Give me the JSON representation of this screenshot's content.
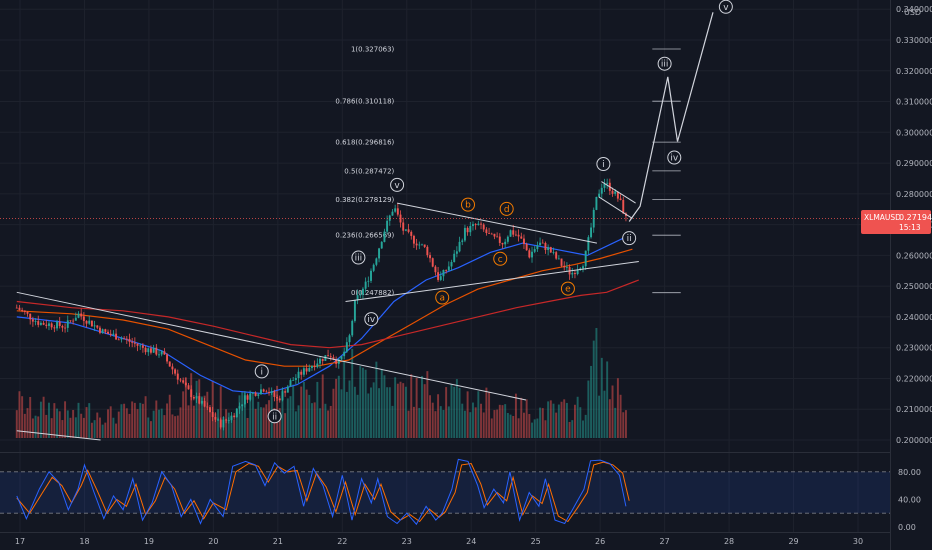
{
  "header": {
    "currency": "USD"
  },
  "price_tag": {
    "symbol": "XLMAUSD",
    "price": "0.271942",
    "countdown": "15:13"
  },
  "colors": {
    "bg": "#131722",
    "grid": "#1e222d",
    "up": "#26a69a",
    "down": "#ef5350",
    "ma_blue": "#2962ff",
    "ma_orange": "#e65100",
    "ma_red": "#c62828",
    "stoch_k": "#2962ff",
    "stoch_d": "#ff6d00",
    "trend": "#d1d4dc",
    "price_line": "#ef5350"
  },
  "chart_data": {
    "type": "candlestick",
    "x_ticks": [
      "17",
      "18",
      "19",
      "20",
      "21",
      "22",
      "23",
      "24",
      "25",
      "26",
      "27",
      "28",
      "29",
      "30"
    ],
    "y_ticks": [
      "0.200000",
      "0.210000",
      "0.220000",
      "0.230000",
      "0.240000",
      "0.250000",
      "0.260000",
      "0.270000",
      "0.280000",
      "0.290000",
      "0.300000",
      "0.310000",
      "0.320000",
      "0.330000",
      "0.340000"
    ],
    "ylim": [
      0.2,
      0.343
    ],
    "last_price": 0.271942,
    "candle_path": [
      [
        16.95,
        0.243
      ],
      [
        17.3,
        0.238
      ],
      [
        17.7,
        0.237
      ],
      [
        17.9,
        0.241
      ],
      [
        18.3,
        0.235
      ],
      [
        18.6,
        0.233
      ],
      [
        18.9,
        0.23
      ],
      [
        19.2,
        0.228
      ],
      [
        19.4,
        0.222
      ],
      [
        19.6,
        0.216
      ],
      [
        19.9,
        0.21
      ],
      [
        20.1,
        0.205
      ],
      [
        20.3,
        0.208
      ],
      [
        20.5,
        0.214
      ],
      [
        20.8,
        0.217
      ],
      [
        21.0,
        0.213
      ],
      [
        21.2,
        0.219
      ],
      [
        21.5,
        0.224
      ],
      [
        21.8,
        0.228
      ],
      [
        21.95,
        0.225
      ],
      [
        22.1,
        0.232
      ],
      [
        22.2,
        0.245
      ],
      [
        22.35,
        0.25
      ],
      [
        22.5,
        0.258
      ],
      [
        22.65,
        0.268
      ],
      [
        22.8,
        0.276
      ],
      [
        22.95,
        0.268
      ],
      [
        23.1,
        0.265
      ],
      [
        23.3,
        0.262
      ],
      [
        23.5,
        0.252
      ],
      [
        23.7,
        0.258
      ],
      [
        23.9,
        0.268
      ],
      [
        24.1,
        0.27
      ],
      [
        24.3,
        0.266
      ],
      [
        24.5,
        0.264
      ],
      [
        24.6,
        0.268
      ],
      [
        24.75,
        0.266
      ],
      [
        24.9,
        0.26
      ],
      [
        25.05,
        0.264
      ],
      [
        25.2,
        0.262
      ],
      [
        25.4,
        0.257
      ],
      [
        25.55,
        0.254
      ],
      [
        25.75,
        0.258
      ],
      [
        25.85,
        0.268
      ],
      [
        25.95,
        0.279
      ],
      [
        26.05,
        0.284
      ],
      [
        26.15,
        0.282
      ],
      [
        26.3,
        0.278
      ],
      [
        26.4,
        0.272
      ]
    ],
    "volume_path": [
      [
        16.95,
        0.4
      ],
      [
        17.2,
        0.3
      ],
      [
        17.5,
        0.35
      ],
      [
        17.8,
        0.25
      ],
      [
        18.1,
        0.3
      ],
      [
        18.4,
        0.25
      ],
      [
        18.8,
        0.3
      ],
      [
        19.2,
        0.35
      ],
      [
        19.5,
        0.45
      ],
      [
        19.8,
        0.55
      ],
      [
        20.1,
        0.4
      ],
      [
        20.4,
        0.35
      ],
      [
        20.8,
        0.4
      ],
      [
        21.1,
        0.45
      ],
      [
        21.5,
        0.5
      ],
      [
        21.9,
        0.55
      ],
      [
        22.1,
        0.75
      ],
      [
        22.3,
        0.6
      ],
      [
        22.5,
        0.9
      ],
      [
        22.7,
        0.55
      ],
      [
        23.0,
        0.5
      ],
      [
        23.4,
        0.55
      ],
      [
        23.8,
        0.45
      ],
      [
        24.2,
        0.4
      ],
      [
        24.6,
        0.35
      ],
      [
        25.0,
        0.3
      ],
      [
        25.4,
        0.3
      ],
      [
        25.8,
        0.35
      ],
      [
        25.9,
        1.0
      ],
      [
        26.1,
        0.6
      ],
      [
        26.4,
        0.45
      ]
    ],
    "moving_averages": [
      {
        "name": "blue",
        "points": [
          [
            16.95,
            0.24
          ],
          [
            17.8,
            0.238
          ],
          [
            18.6,
            0.233
          ],
          [
            19.2,
            0.229
          ],
          [
            19.8,
            0.221
          ],
          [
            20.3,
            0.216
          ],
          [
            20.8,
            0.215
          ],
          [
            21.3,
            0.218
          ],
          [
            21.8,
            0.224
          ],
          [
            22.3,
            0.233
          ],
          [
            22.8,
            0.245
          ],
          [
            23.3,
            0.252
          ],
          [
            23.8,
            0.256
          ],
          [
            24.3,
            0.261
          ],
          [
            24.8,
            0.264
          ],
          [
            25.3,
            0.262
          ],
          [
            25.8,
            0.26
          ],
          [
            26.4,
            0.266
          ]
        ]
      },
      {
        "name": "orange",
        "points": [
          [
            16.95,
            0.242
          ],
          [
            17.8,
            0.241
          ],
          [
            18.6,
            0.239
          ],
          [
            19.3,
            0.236
          ],
          [
            19.9,
            0.231
          ],
          [
            20.5,
            0.226
          ],
          [
            21.1,
            0.224
          ],
          [
            21.6,
            0.224
          ],
          [
            22.1,
            0.226
          ],
          [
            22.6,
            0.232
          ],
          [
            23.1,
            0.238
          ],
          [
            23.6,
            0.244
          ],
          [
            24.1,
            0.249
          ],
          [
            24.6,
            0.252
          ],
          [
            25.1,
            0.255
          ],
          [
            25.6,
            0.257
          ],
          [
            26.0,
            0.259
          ],
          [
            26.5,
            0.262
          ]
        ]
      },
      {
        "name": "red",
        "points": [
          [
            16.95,
            0.245
          ],
          [
            17.8,
            0.243
          ],
          [
            18.6,
            0.242
          ],
          [
            19.3,
            0.24
          ],
          [
            20.0,
            0.237
          ],
          [
            20.6,
            0.234
          ],
          [
            21.2,
            0.231
          ],
          [
            21.8,
            0.23
          ],
          [
            22.3,
            0.231
          ],
          [
            22.9,
            0.234
          ],
          [
            23.5,
            0.237
          ],
          [
            24.1,
            0.24
          ],
          [
            24.7,
            0.243
          ],
          [
            25.2,
            0.245
          ],
          [
            25.7,
            0.247
          ],
          [
            26.1,
            0.248
          ],
          [
            26.6,
            0.252
          ]
        ]
      }
    ],
    "trend_lines": [
      {
        "from": [
          16.95,
          0.248
        ],
        "to": [
          24.85,
          0.213
        ]
      },
      {
        "from": [
          16.95,
          0.203
        ],
        "to": [
          18.25,
          0.2
        ]
      },
      {
        "from": [
          22.85,
          0.277
        ],
        "to": [
          25.95,
          0.264
        ]
      },
      {
        "from": [
          22.05,
          0.245
        ],
        "to": [
          26.6,
          0.258
        ]
      },
      {
        "from": [
          26.02,
          0.284
        ],
        "to": [
          26.55,
          0.277
        ]
      },
      {
        "from": [
          25.98,
          0.279
        ],
        "to": [
          26.5,
          0.272
        ]
      }
    ],
    "fib_levels": [
      {
        "label": "1(0.327063)",
        "value": 0.327063
      },
      {
        "label": "0.786(0.310118)",
        "value": 0.310118
      },
      {
        "label": "0.618(0.296816)",
        "value": 0.296816
      },
      {
        "label": "0.5(0.287472)",
        "value": 0.287472
      },
      {
        "label": "0.382(0.278129)",
        "value": 0.278129
      },
      {
        "label": "0.236(0.266569)",
        "value": 0.266569
      },
      {
        "label": "0(0.247882)",
        "value": 0.247882
      }
    ],
    "fib_range": [
      22.0,
      27.25
    ],
    "projection": [
      [
        26.45,
        0.271
      ],
      [
        26.62,
        0.276
      ],
      [
        27.05,
        0.318
      ],
      [
        27.2,
        0.297
      ],
      [
        27.75,
        0.339
      ]
    ],
    "wave_labels": [
      {
        "text": "i",
        "x": 20.75,
        "y": 0.2223,
        "style": "white"
      },
      {
        "text": "ii",
        "x": 20.95,
        "y": 0.2077,
        "style": "white"
      },
      {
        "text": "iii",
        "x": 22.25,
        "y": 0.2593,
        "style": "white"
      },
      {
        "text": "iv",
        "x": 22.45,
        "y": 0.2393,
        "style": "white"
      },
      {
        "text": "v",
        "x": 22.85,
        "y": 0.2829,
        "style": "white"
      },
      {
        "text": "a",
        "x": 23.55,
        "y": 0.2463,
        "style": "orange"
      },
      {
        "text": "b",
        "x": 23.95,
        "y": 0.2765,
        "style": "orange"
      },
      {
        "text": "c",
        "x": 24.45,
        "y": 0.2589,
        "style": "orange"
      },
      {
        "text": "d",
        "x": 24.55,
        "y": 0.2751,
        "style": "orange"
      },
      {
        "text": "e",
        "x": 25.5,
        "y": 0.2492,
        "style": "orange"
      },
      {
        "text": "i",
        "x": 26.05,
        "y": 0.2897,
        "style": "white"
      },
      {
        "text": "ii",
        "x": 26.45,
        "y": 0.2656,
        "style": "white"
      },
      {
        "text": "iii",
        "x": 27.0,
        "y": 0.3223,
        "style": "white"
      },
      {
        "text": "iv",
        "x": 27.15,
        "y": 0.2918,
        "style": "white"
      },
      {
        "text": "v",
        "x": 27.95,
        "y": 0.3408,
        "style": "white"
      }
    ],
    "stochastic": {
      "y_ticks": [
        "80.00",
        "40.00",
        "0.00"
      ],
      "levels": [
        80,
        20
      ],
      "k_points": [
        [
          16.95,
          45
        ],
        [
          17.1,
          12
        ],
        [
          17.3,
          55
        ],
        [
          17.45,
          80
        ],
        [
          17.6,
          65
        ],
        [
          17.75,
          25
        ],
        [
          17.9,
          55
        ],
        [
          18.0,
          90
        ],
        [
          18.15,
          50
        ],
        [
          18.3,
          12
        ],
        [
          18.45,
          45
        ],
        [
          18.6,
          25
        ],
        [
          18.75,
          70
        ],
        [
          18.9,
          10
        ],
        [
          19.05,
          35
        ],
        [
          19.2,
          80
        ],
        [
          19.35,
          60
        ],
        [
          19.5,
          15
        ],
        [
          19.65,
          40
        ],
        [
          19.8,
          5
        ],
        [
          19.95,
          40
        ],
        [
          20.15,
          15
        ],
        [
          20.3,
          88
        ],
        [
          20.5,
          95
        ],
        [
          20.65,
          90
        ],
        [
          20.8,
          60
        ],
        [
          20.95,
          93
        ],
        [
          21.1,
          78
        ],
        [
          21.25,
          88
        ],
        [
          21.4,
          30
        ],
        [
          21.55,
          85
        ],
        [
          21.7,
          60
        ],
        [
          21.85,
          15
        ],
        [
          22.0,
          75
        ],
        [
          22.15,
          10
        ],
        [
          22.3,
          70
        ],
        [
          22.45,
          35
        ],
        [
          22.55,
          70
        ],
        [
          22.7,
          15
        ],
        [
          22.85,
          5
        ],
        [
          23.0,
          20
        ],
        [
          23.15,
          4
        ],
        [
          23.3,
          30
        ],
        [
          23.45,
          10
        ],
        [
          23.55,
          20
        ],
        [
          23.7,
          55
        ],
        [
          23.8,
          98
        ],
        [
          23.95,
          95
        ],
        [
          24.1,
          60
        ],
        [
          24.2,
          28
        ],
        [
          24.35,
          55
        ],
        [
          24.5,
          35
        ],
        [
          24.6,
          80
        ],
        [
          24.75,
          10
        ],
        [
          24.9,
          50
        ],
        [
          25.05,
          30
        ],
        [
          25.15,
          70
        ],
        [
          25.3,
          10
        ],
        [
          25.45,
          5
        ],
        [
          25.6,
          30
        ],
        [
          25.75,
          55
        ],
        [
          25.85,
          96
        ],
        [
          26.0,
          97
        ],
        [
          26.15,
          92
        ],
        [
          26.3,
          75
        ],
        [
          26.4,
          30
        ]
      ],
      "d_points": [
        [
          16.95,
          42
        ],
        [
          17.15,
          20
        ],
        [
          17.35,
          50
        ],
        [
          17.5,
          72
        ],
        [
          17.65,
          60
        ],
        [
          17.8,
          35
        ],
        [
          17.95,
          60
        ],
        [
          18.05,
          82
        ],
        [
          18.2,
          52
        ],
        [
          18.35,
          20
        ],
        [
          18.5,
          40
        ],
        [
          18.65,
          30
        ],
        [
          18.8,
          62
        ],
        [
          18.95,
          18
        ],
        [
          19.1,
          38
        ],
        [
          19.25,
          72
        ],
        [
          19.4,
          55
        ],
        [
          19.55,
          20
        ],
        [
          19.7,
          38
        ],
        [
          19.85,
          12
        ],
        [
          20.0,
          35
        ],
        [
          20.2,
          25
        ],
        [
          20.35,
          80
        ],
        [
          20.55,
          92
        ],
        [
          20.7,
          88
        ],
        [
          20.85,
          65
        ],
        [
          21.0,
          88
        ],
        [
          21.15,
          80
        ],
        [
          21.3,
          82
        ],
        [
          21.45,
          38
        ],
        [
          21.6,
          78
        ],
        [
          21.75,
          58
        ],
        [
          21.9,
          22
        ],
        [
          22.05,
          65
        ],
        [
          22.2,
          18
        ],
        [
          22.35,
          62
        ],
        [
          22.5,
          40
        ],
        [
          22.6,
          62
        ],
        [
          22.75,
          22
        ],
        [
          22.9,
          10
        ],
        [
          23.05,
          18
        ],
        [
          23.2,
          8
        ],
        [
          23.35,
          26
        ],
        [
          23.5,
          14
        ],
        [
          23.6,
          22
        ],
        [
          23.75,
          50
        ],
        [
          23.85,
          90
        ],
        [
          24.0,
          92
        ],
        [
          24.15,
          62
        ],
        [
          24.25,
          32
        ],
        [
          24.4,
          50
        ],
        [
          24.55,
          38
        ],
        [
          24.65,
          72
        ],
        [
          24.8,
          18
        ],
        [
          24.95,
          45
        ],
        [
          25.1,
          34
        ],
        [
          25.2,
          62
        ],
        [
          25.35,
          16
        ],
        [
          25.5,
          8
        ],
        [
          25.65,
          28
        ],
        [
          25.8,
          50
        ],
        [
          25.9,
          90
        ],
        [
          26.05,
          94
        ],
        [
          26.2,
          90
        ],
        [
          26.35,
          78
        ],
        [
          26.45,
          38
        ]
      ]
    }
  }
}
